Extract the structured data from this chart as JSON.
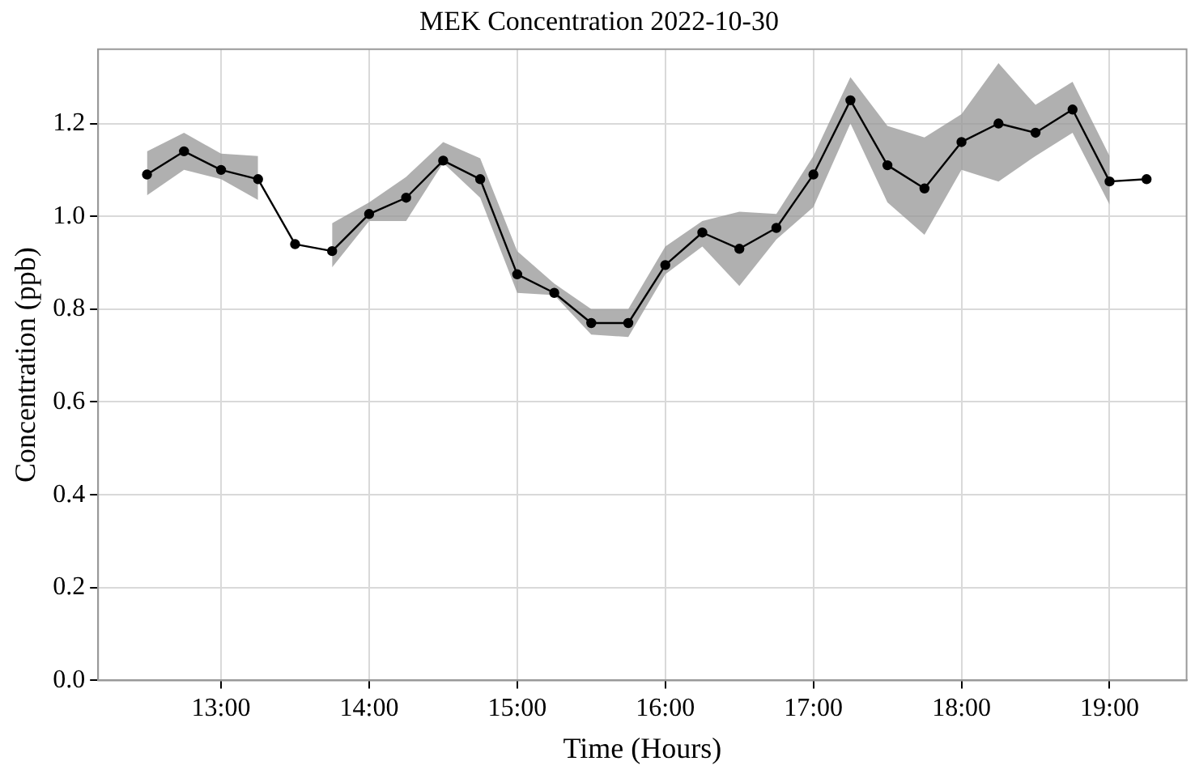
{
  "chart_data": {
    "type": "line",
    "title": "MEK Concentration 2022-10-30",
    "xlabel": "Time (Hours)",
    "ylabel": "Concentration (ppb)",
    "x": [
      12.5,
      12.75,
      13,
      13.25,
      13.5,
      13.75,
      14,
      14.25,
      14.5,
      14.75,
      15,
      15.25,
      15.5,
      15.75,
      16,
      16.25,
      16.5,
      16.75,
      17,
      17.25,
      17.5,
      17.75,
      18,
      18.25,
      18.5,
      18.75,
      19,
      19.25
    ],
    "series": [
      {
        "color": "#000000",
        "values": [
          1.09,
          1.14,
          1.1,
          1.08,
          0.94,
          0.925,
          1.005,
          1.04,
          1.12,
          1.08,
          0.875,
          0.835,
          0.77,
          0.77,
          0.895,
          0.965,
          0.93,
          0.975,
          1.09,
          1.25,
          1.11,
          1.06,
          1.16,
          1.2,
          1.18,
          1.23,
          1.075,
          1.08
        ],
        "lower": [
          1.045,
          1.1,
          1.08,
          1.035,
          null,
          0.89,
          0.99,
          0.99,
          1.115,
          1.04,
          0.835,
          0.83,
          0.745,
          0.74,
          0.875,
          0.935,
          0.85,
          0.95,
          1.02,
          1.2,
          1.03,
          0.96,
          1.1,
          1.075,
          1.13,
          1.18,
          1.025,
          null
        ],
        "upper": [
          1.14,
          1.18,
          1.135,
          1.13,
          null,
          0.985,
          1.03,
          1.085,
          1.16,
          1.125,
          0.925,
          0.855,
          0.8,
          0.8,
          0.935,
          0.99,
          1.01,
          1.005,
          1.13,
          1.3,
          1.195,
          1.17,
          1.22,
          1.33,
          1.24,
          1.29,
          1.13,
          null
        ]
      }
    ],
    "xlim": [
      12.17,
      19.52
    ],
    "ylim": [
      0,
      1.36
    ],
    "xticks": [
      {
        "value": 13,
        "label": "13:00"
      },
      {
        "value": 14,
        "label": "14:00"
      },
      {
        "value": 15,
        "label": "15:00"
      },
      {
        "value": 16,
        "label": "16:00"
      },
      {
        "value": 17,
        "label": "17:00"
      },
      {
        "value": 18,
        "label": "18:00"
      },
      {
        "value": 19,
        "label": "19:00"
      }
    ],
    "yticks": [
      {
        "value": 0,
        "label": "0.0"
      },
      {
        "value": 0.2,
        "label": "0.2"
      },
      {
        "value": 0.4,
        "label": "0.4"
      },
      {
        "value": 0.6,
        "label": "0.6"
      },
      {
        "value": 0.8,
        "label": "0.8"
      },
      {
        "value": 1,
        "label": "1.0"
      },
      {
        "value": 1.2,
        "label": "1.2"
      }
    ],
    "grid": true,
    "legend": false,
    "marker": "circle",
    "line_style": "solid"
  }
}
